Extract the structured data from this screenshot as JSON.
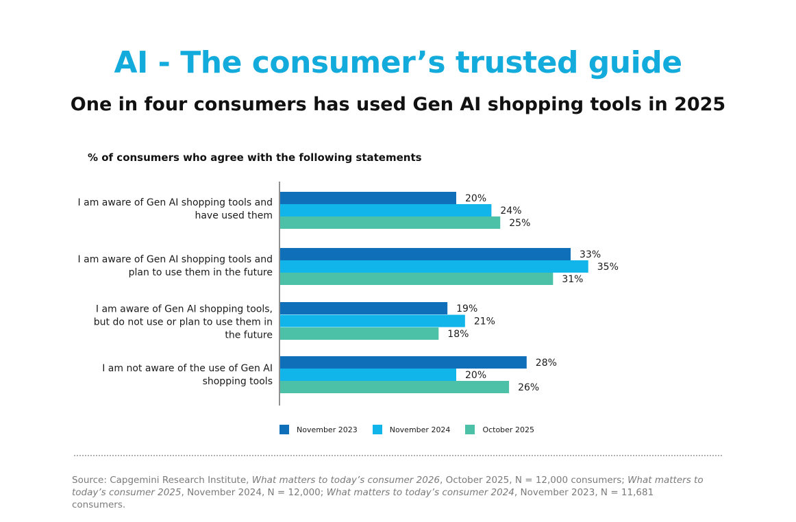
{
  "header": {
    "title": "AI - The consumer’s trusted guide",
    "subtitle": "One in four consumers has used Gen AI shopping tools in 2025"
  },
  "chart_data": {
    "type": "bar",
    "orientation": "horizontal",
    "title": "% of consumers who agree with the following statements",
    "categories": [
      "I am aware of Gen AI shopping tools and have used them",
      "I am aware of Gen AI shopping tools and plan to use them in the future",
      "I am aware of Gen AI shopping tools, but do not use or plan to use them in the future",
      "I am not aware of the use of Gen AI shopping tools"
    ],
    "category_lines": [
      [
        "I am aware of Gen AI shopping tools and",
        "have used them"
      ],
      [
        "I am aware of Gen AI shopping tools and",
        "plan to use them in the future"
      ],
      [
        "I am aware of Gen AI shopping tools,",
        "but do not use or plan to use them in",
        "the future"
      ],
      [
        "I am not aware of the use of Gen AI",
        "shopping tools"
      ]
    ],
    "series": [
      {
        "name": "November 2023",
        "color": "#0f6fb8",
        "values": [
          20,
          33,
          19,
          28
        ]
      },
      {
        "name": "November 2024",
        "color": "#12b5ea",
        "values": [
          24,
          35,
          21,
          20
        ]
      },
      {
        "name": "October 2025",
        "color": "#4dc1a8",
        "values": [
          25,
          31,
          18,
          26
        ]
      }
    ],
    "value_suffix": "%",
    "legend_position": "bottom",
    "grid": false
  },
  "footer": {
    "source_parts": [
      {
        "text": "Source: Capgemini Research Institute, ",
        "italic": false
      },
      {
        "text": "What matters to today’s consumer 2026",
        "italic": true
      },
      {
        "text": ", October 2025, N = 12,000 consumers; ",
        "italic": false
      },
      {
        "text": "What matters to today’s consumer 2025",
        "italic": true
      },
      {
        "text": ", November 2024, N = 12,000; ",
        "italic": false
      },
      {
        "text": "What matters to today’s consumer 2024",
        "italic": true
      },
      {
        "text": ", November 2023, N = 11,681 consumers.",
        "italic": false
      }
    ]
  }
}
